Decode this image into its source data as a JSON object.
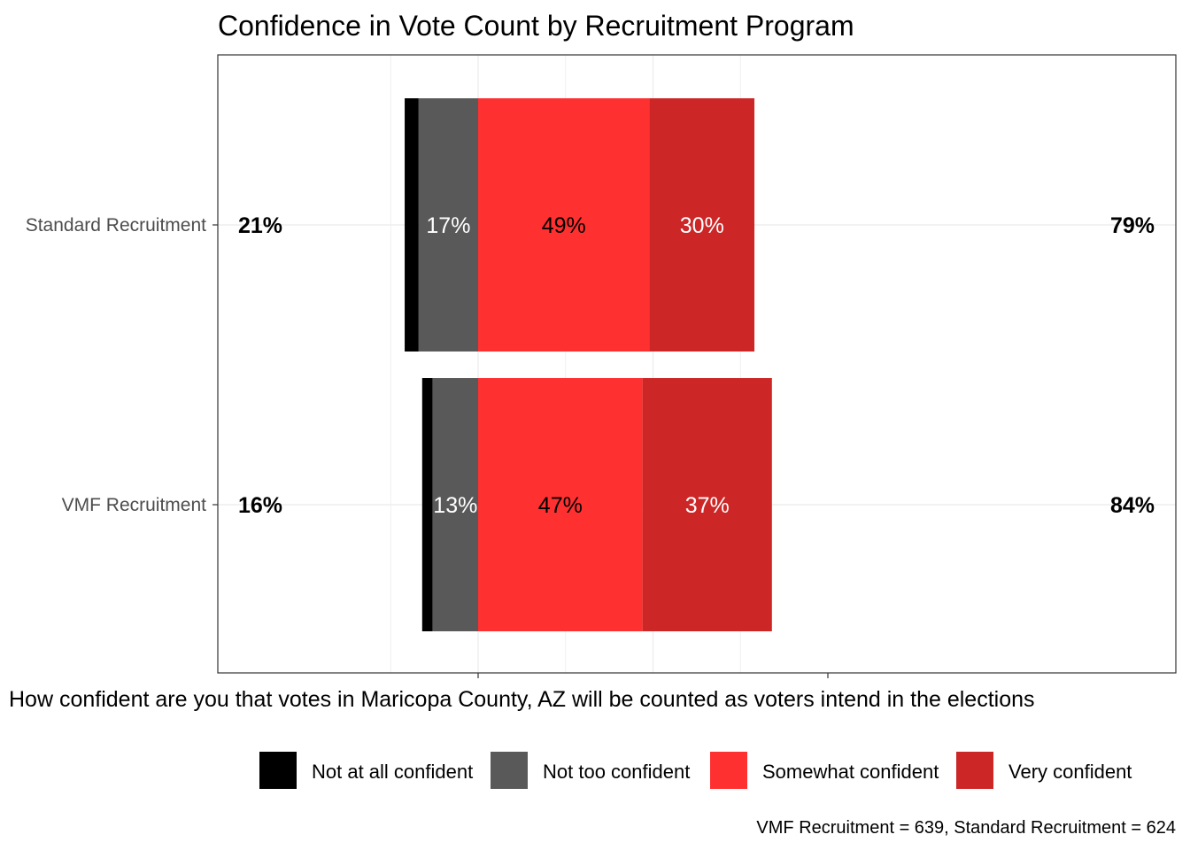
{
  "chart_data": {
    "type": "bar",
    "orientation": "horizontal",
    "stacked": "diverging",
    "title": "Confidence in Vote Count by Recruitment Program",
    "xlabel": "How confident are you that votes in Maricopa County, AZ will be counted as voters intend in the elections",
    "ylabel": "",
    "caption": "VMF Recruitment = 639, Standard Recruitment = 624",
    "categories": [
      "Standard Recruitment",
      "VMF Recruitment"
    ],
    "series": [
      {
        "name": "Not at all confident",
        "color": "#000000",
        "label_color": "#000000",
        "values": [
          4,
          3
        ],
        "labels": [
          "",
          ""
        ]
      },
      {
        "name": "Not too confident",
        "color": "#595959",
        "label_color": "#ffffff",
        "values": [
          17,
          13
        ],
        "labels": [
          "17%",
          "13%"
        ]
      },
      {
        "name": "Somewhat confident",
        "color": "#ff3030",
        "label_color": "#000000",
        "values": [
          49,
          47
        ],
        "labels": [
          "49%",
          "47%"
        ]
      },
      {
        "name": "Very confident",
        "color": "#cc2626",
        "label_color": "#ffffff",
        "values": [
          30,
          37
        ],
        "labels": [
          "30%",
          "37%"
        ]
      }
    ],
    "left_totals": [
      "21%",
      "16%"
    ],
    "right_totals": [
      "79%",
      "84%"
    ],
    "xlim": [
      -25,
      100
    ],
    "grid": true,
    "legend_position": "bottom"
  }
}
